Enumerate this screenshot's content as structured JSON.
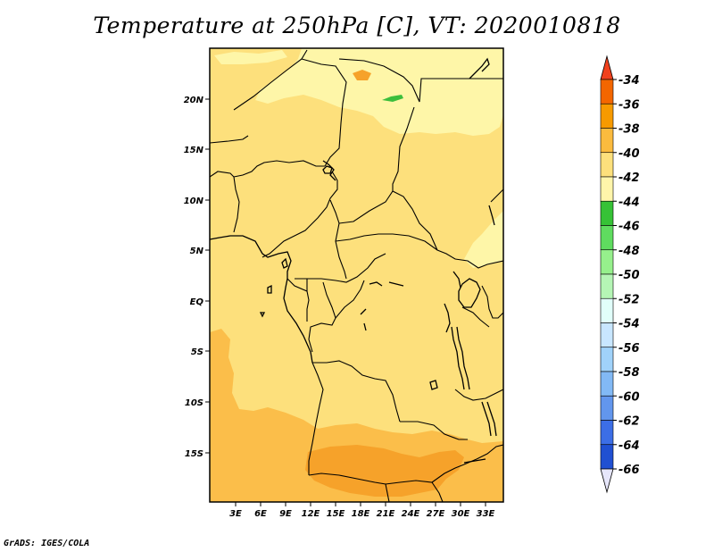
{
  "title": "Temperature at 250hPa [C], VT: 2020010818",
  "footer": "GrADS: IGES/COLA",
  "map": {
    "lon_labels": [
      "3E",
      "6E",
      "9E",
      "12E",
      "15E",
      "18E",
      "21E",
      "24E",
      "27E",
      "30E",
      "33E"
    ],
    "lat_labels": [
      "20N",
      "15N",
      "10N",
      "5N",
      "EQ",
      "5S",
      "10S",
      "15S"
    ],
    "field_colors": {
      "c_40_42": "#fde07c",
      "c_42_44": "#fef6a8",
      "c_38_40": "#fbbe4a",
      "c_36_38": "#f6a22a",
      "c_44_46": "#3cbe3c"
    }
  },
  "colorbar": {
    "labels": [
      "-34",
      "-36",
      "-38",
      "-40",
      "-42",
      "-44",
      "-46",
      "-48",
      "-50",
      "-52",
      "-54",
      "-56",
      "-58",
      "-60",
      "-62",
      "-64",
      "-66"
    ],
    "top_arrow_color": "#f0411d",
    "bottom_arrow_color": "#e6e6fa",
    "segment_colors": [
      "#f36600",
      "#f79a00",
      "#fbbb3e",
      "#fde07c",
      "#fff5aa",
      "#36c236",
      "#5fdc5f",
      "#96f08c",
      "#b5f5b5",
      "#e1fffa",
      "#c8e6ff",
      "#a0d2fa",
      "#82b9f5",
      "#6296ed",
      "#3c6ee6",
      "#2050d2",
      "#0f1e9a",
      "#050a6e"
    ]
  }
}
